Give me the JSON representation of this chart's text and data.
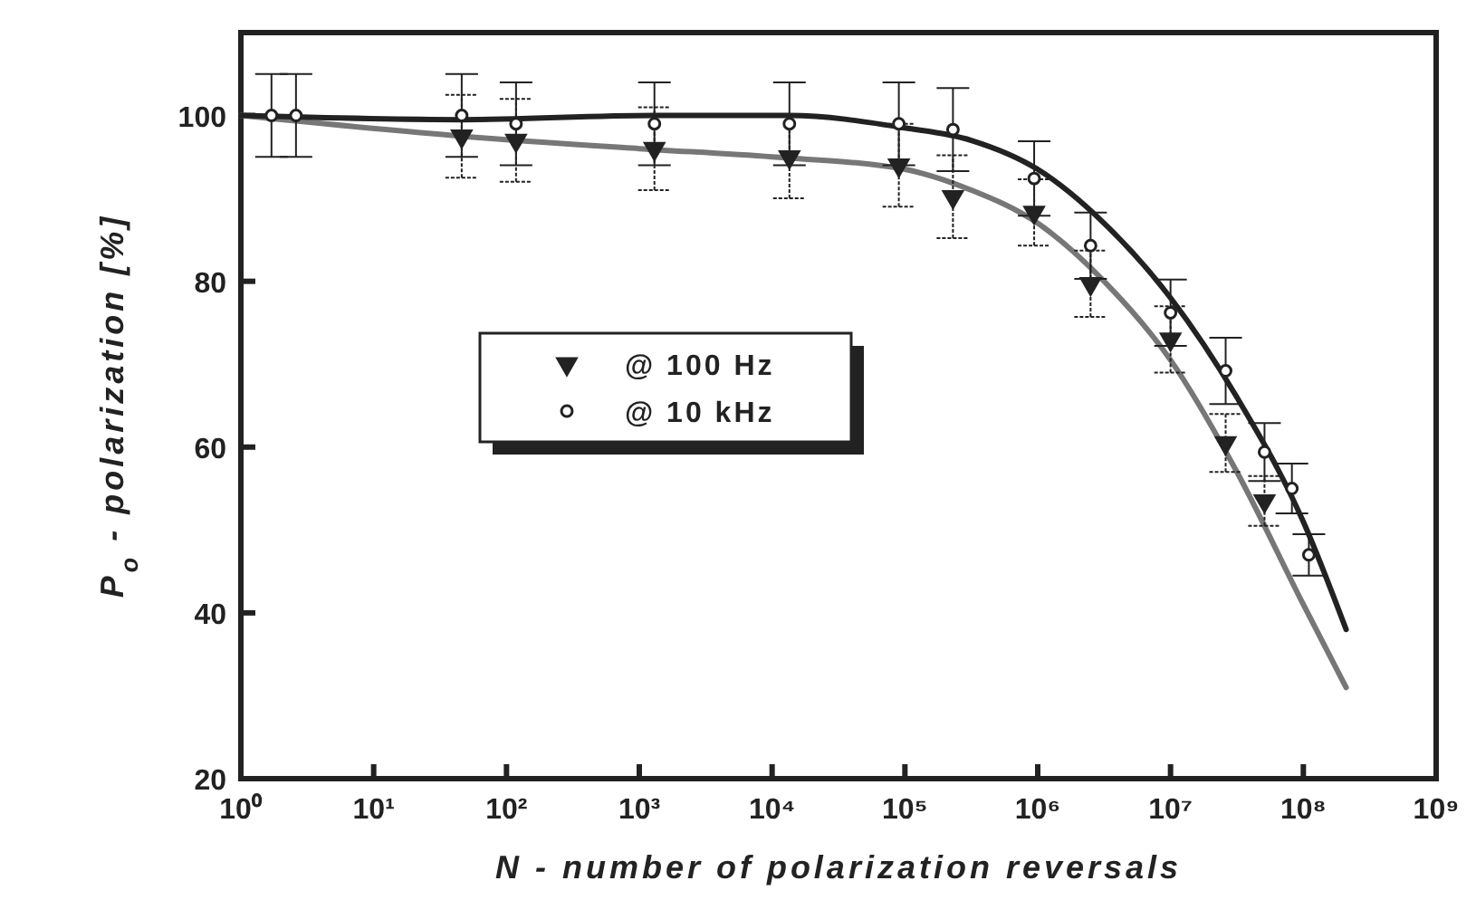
{
  "chart_data": {
    "type": "scatter",
    "xlabel": "N - number of polarization reversals",
    "ylabel": "P$_{o}$ - polarization [%]",
    "log": "x",
    "xlim": [
      1,
      1000000000
    ],
    "ylim": [
      20,
      110
    ],
    "xticks": [
      {
        "value": 1,
        "label": "10⁰"
      },
      {
        "value": 10,
        "label": "10¹"
      },
      {
        "value": 100,
        "label": "10²"
      },
      {
        "value": 1000,
        "label": "10³"
      },
      {
        "value": 10000,
        "label": "10⁴"
      },
      {
        "value": 100000,
        "label": "10⁵"
      },
      {
        "value": 1000000,
        "label": "10⁶"
      },
      {
        "value": 10000000,
        "label": "10⁷"
      },
      {
        "value": 100000000,
        "label": "10⁸"
      },
      {
        "value": 1000000000,
        "label": "10⁹"
      }
    ],
    "yticks": [
      20,
      40,
      60,
      80,
      100
    ],
    "grid": false,
    "legend": "center",
    "series": [
      {
        "name": "@ 100 Hz",
        "marker": "triangle",
        "color": "#222222",
        "x": [
          46,
          118,
          1300,
          13500,
          90000,
          230000,
          940000,
          2500000,
          10000000,
          26000000,
          51000000
        ],
        "values": [
          97.5,
          97,
          96,
          95,
          94,
          90.2,
          88.3,
          79.7,
          73,
          60.5,
          53.5
        ],
        "errors": [
          5,
          5,
          5,
          5,
          5,
          5,
          4,
          4,
          4,
          3.5,
          3
        ]
      },
      {
        "name": "@ 10 kHz",
        "marker": "circle",
        "color": "#222222",
        "x": [
          1.7,
          2.6,
          46,
          118,
          1300,
          13500,
          90000,
          230000,
          940000,
          2500000,
          10000000,
          26000000,
          51000000,
          82000000,
          110000000
        ],
        "values": [
          100,
          100,
          100,
          99,
          99,
          99,
          99,
          98.3,
          92.4,
          84.3,
          76.2,
          69.2,
          59.4,
          55,
          47
        ],
        "errors": [
          5,
          5,
          5,
          5,
          5,
          5,
          5,
          5,
          4.5,
          4,
          4,
          4,
          3.5,
          3,
          2.5
        ]
      },
      {
        "type": "line",
        "marker": "none",
        "line_style": "solid",
        "color": "#777777",
        "x": [
          1,
          46,
          1000,
          10000,
          100000,
          316000,
          1000000,
          3160000,
          10000000,
          31600000,
          100000000,
          210000000
        ],
        "values": [
          100,
          97.5,
          96,
          95,
          93.5,
          91,
          87,
          80,
          70.5,
          57,
          41,
          31
        ]
      },
      {
        "type": "line",
        "marker": "none",
        "line_style": "solid",
        "color": "#222222",
        "x": [
          1,
          46,
          1300,
          13500,
          100000,
          316000,
          1000000,
          3160000,
          10000000,
          31600000,
          100000000,
          210000000
        ],
        "values": [
          100,
          99.5,
          100,
          100,
          98.5,
          97,
          93.5,
          87,
          78,
          66,
          51,
          38
        ]
      }
    ]
  }
}
